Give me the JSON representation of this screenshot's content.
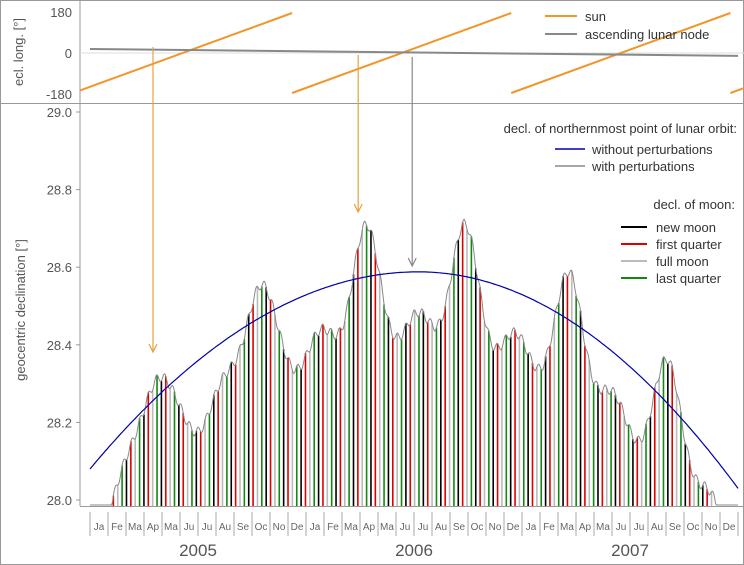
{
  "chart_data": [
    {
      "type": "line",
      "ylabel": "ecl. long. [°]",
      "ylim": [
        -180,
        180
      ],
      "yticks": [
        "180",
        "0",
        "-180"
      ],
      "legend_position": "top-right",
      "series": [
        {
          "name": "sun",
          "color": "#f0962b",
          "slope_deg_per_month": 29.57,
          "value_at_2005_0": -152
        },
        {
          "name": "ascending lunar node",
          "color": "#888888",
          "x": [
            2005.0,
            2008.0
          ],
          "values": [
            18,
            -13
          ]
        }
      ]
    },
    {
      "type": "line",
      "ylabel": "geocentric declination [°]",
      "ylim": [
        28.0,
        29.0
      ],
      "yticks": [
        "29.0",
        "28.8",
        "28.6",
        "28.4",
        "28.2",
        "28.0"
      ],
      "legend_position": "top-right",
      "legend_titles": {
        "northernmost": "decl. of northernmost point of lunar orbit:",
        "moon": "decl. of moon:"
      },
      "series": [
        {
          "name": "without perturbations",
          "color": "#0000aa",
          "x": [
            2005.0,
            2006.52,
            2008.0
          ],
          "values": [
            28.08,
            28.588,
            28.03
          ]
        },
        {
          "name": "with perturbations",
          "color": "#888888",
          "peaks_x": [
            2005.295,
            2005.77,
            2006.27,
            2006.73,
            2007.23,
            2007.69
          ],
          "peaks_y": [
            28.375,
            28.595,
            28.715,
            28.715,
            28.595,
            28.37
          ]
        }
      ],
      "moon_phase_series": [
        {
          "name": "new moon",
          "color": "#000000"
        },
        {
          "name": "first quarter",
          "color": "#dd0000"
        },
        {
          "name": "full moon",
          "color": "#bbbbbb"
        },
        {
          "name": "last quarter",
          "color": "#118811"
        }
      ],
      "x_months": [
        "Ja",
        "Fe",
        "Ma",
        "Ap",
        "Ma",
        "Ju",
        "Ju",
        "Au",
        "Se",
        "Oc",
        "No",
        "De",
        "Ja",
        "Fe",
        "Ma",
        "Ap",
        "Ma",
        "Ju",
        "Ju",
        "Au",
        "Se",
        "Oc",
        "No",
        "De",
        "Ja",
        "Fe",
        "Ma",
        "Ap",
        "Ma",
        "Ju",
        "Ju",
        "Au",
        "Se",
        "Oc",
        "No",
        "De"
      ],
      "x_years": [
        "2005",
        "2006",
        "2007"
      ]
    }
  ],
  "colors": {
    "sun": "#f0962b",
    "node": "#888888",
    "no_perturb": "#0000aa",
    "arrow_orange": "#e8a040",
    "arrow_gray": "#888888",
    "frame": "#999999"
  }
}
